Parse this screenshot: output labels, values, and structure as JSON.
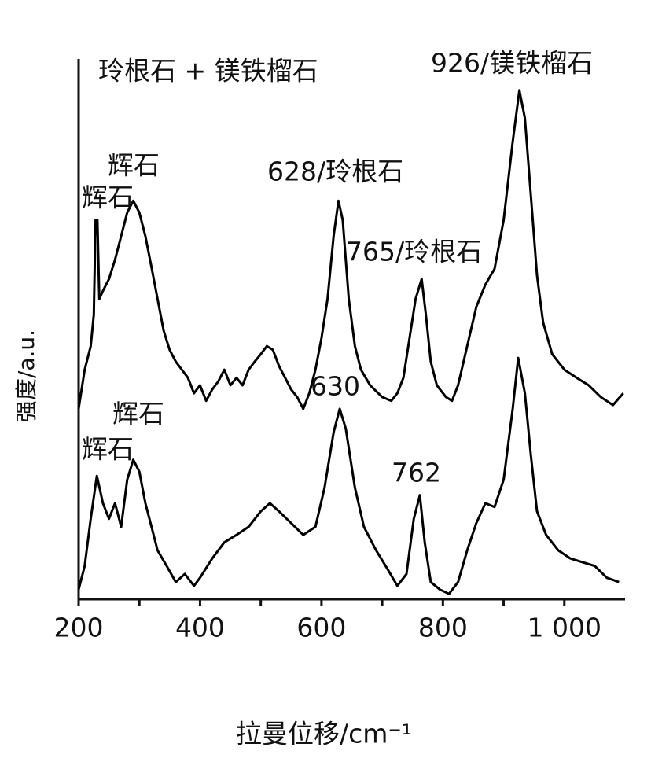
{
  "chart_data": {
    "type": "line",
    "xlabel": "拉曼位移/cm⁻¹",
    "ylabel": "强度/a.u.",
    "xlim": [
      200,
      1100
    ],
    "xticks": [
      200,
      400,
      600,
      800,
      {
        "value": 1000,
        "label": "1 000"
      }
    ],
    "xminorticks": [
      300,
      500,
      700,
      900
    ],
    "ylim": [
      0,
      100
    ],
    "annotations": [
      "玲根石 + 镁铁榴石",
      "926/镁铁榴石",
      "辉石",
      "辉石",
      "628/玲根石",
      "765/玲根石",
      "630",
      "辉石",
      "辉石",
      "762"
    ],
    "series": [
      {
        "color": "#000000",
        "x": [
          200,
          210,
          220,
          225,
          228,
          231,
          234,
          240,
          250,
          260,
          270,
          280,
          290,
          300,
          310,
          320,
          330,
          340,
          350,
          360,
          370,
          380,
          390,
          400,
          410,
          420,
          430,
          440,
          450,
          460,
          470,
          480,
          490,
          500,
          510,
          520,
          530,
          540,
          550,
          560,
          570,
          580,
          590,
          600,
          610,
          620,
          628,
          635,
          645,
          655,
          665,
          680,
          700,
          715,
          725,
          735,
          745,
          755,
          765,
          772,
          780,
          790,
          805,
          815,
          825,
          840,
          855,
          870,
          885,
          900,
          915,
          926,
          935,
          945,
          955,
          965,
          980,
          1000,
          1020,
          1040,
          1060,
          1080,
          1097
        ],
        "values": [
          35.5,
          42.8,
          47.2,
          53,
          70.7,
          70.7,
          56,
          57.5,
          59.7,
          63.3,
          67.7,
          72.1,
          74.3,
          72.1,
          67.7,
          61.9,
          56,
          50.1,
          46.5,
          44.3,
          42.8,
          41.3,
          38.4,
          39.9,
          37,
          39.1,
          40.6,
          42.8,
          39.9,
          41.3,
          39.9,
          42.8,
          44.3,
          45.7,
          47.2,
          46.5,
          43.5,
          41.3,
          39.1,
          37.7,
          35.5,
          38.4,
          42.8,
          48.7,
          56,
          67.7,
          74.3,
          70.7,
          56,
          47.2,
          42.8,
          39.9,
          37.7,
          37,
          38.4,
          41.3,
          48.7,
          56,
          59.7,
          53,
          44.3,
          39.9,
          37.7,
          37,
          39.9,
          47.2,
          54.5,
          58.7,
          61.6,
          70.7,
          85.3,
          94.9,
          89.7,
          75.1,
          60.4,
          51.6,
          45.7,
          42.8,
          41.3,
          39.9,
          37.7,
          36.2,
          38.4
        ]
      },
      {
        "color": "#000000",
        "x": [
          200,
          210,
          220,
          230,
          240,
          250,
          260,
          270,
          280,
          290,
          300,
          310,
          320,
          330,
          345,
          360,
          375,
          390,
          400,
          420,
          440,
          460,
          480,
          500,
          515,
          530,
          550,
          570,
          590,
          605,
          620,
          630,
          640,
          655,
          670,
          690,
          710,
          725,
          740,
          752,
          762,
          770,
          780,
          795,
          810,
          825,
          840,
          855,
          870,
          885,
          900,
          915,
          924,
          935,
          945,
          955,
          970,
          990,
          1010,
          1030,
          1050,
          1070,
          1090
        ],
        "values": [
          1.8,
          6.2,
          15,
          23,
          17.9,
          15,
          17.9,
          13.5,
          22.3,
          26,
          23.8,
          17.9,
          13.5,
          9.1,
          6.2,
          3.2,
          4.7,
          2.5,
          4,
          7.6,
          10.6,
          12,
          13.5,
          16.4,
          17.9,
          16.4,
          14.2,
          12,
          13.5,
          20.8,
          31.1,
          35.5,
          31.8,
          20.8,
          13.5,
          9.1,
          5.4,
          2.5,
          4.7,
          15,
          19.4,
          10.6,
          3.2,
          1.8,
          1,
          3.2,
          9.1,
          14.2,
          17.9,
          17.2,
          22.3,
          35.5,
          45,
          38.4,
          26.7,
          16.4,
          12,
          9.1,
          7.6,
          6.9,
          6.2,
          4,
          3.2
        ]
      }
    ]
  }
}
